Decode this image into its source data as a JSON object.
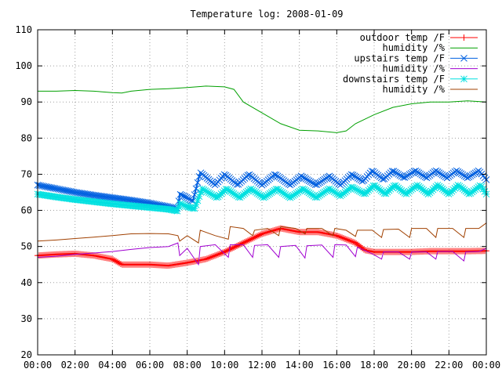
{
  "chart_data": {
    "type": "line",
    "title": "Temperature log: 2008-01-09",
    "xlabel": "",
    "ylabel": "",
    "x_tick_labels": [
      "00:00",
      "02:00",
      "04:00",
      "06:00",
      "08:00",
      "10:00",
      "12:00",
      "14:00",
      "16:00",
      "18:00",
      "20:00",
      "22:00",
      "00:00"
    ],
    "x_range_hours": [
      0,
      24
    ],
    "y_tick_labels": [
      "20",
      "30",
      "40",
      "50",
      "60",
      "70",
      "80",
      "90",
      "100",
      "110"
    ],
    "ylim": [
      20,
      110
    ],
    "grid": true,
    "legend_position": "top-right",
    "series": [
      {
        "name": "outdoor temp /F",
        "color": "#ff0000",
        "marker": "plus",
        "dense": true,
        "points": [
          [
            0,
            47.5
          ],
          [
            1,
            47.8
          ],
          [
            2,
            48
          ],
          [
            3,
            47.5
          ],
          [
            4,
            46.5
          ],
          [
            4.5,
            45
          ],
          [
            5,
            45
          ],
          [
            6,
            45
          ],
          [
            7,
            44.7
          ],
          [
            8,
            45.5
          ],
          [
            9,
            46.5
          ],
          [
            10,
            48.5
          ],
          [
            11,
            51
          ],
          [
            12,
            53.5
          ],
          [
            13,
            55
          ],
          [
            14,
            54
          ],
          [
            15,
            54
          ],
          [
            16,
            53
          ],
          [
            17,
            51
          ],
          [
            17.5,
            49
          ],
          [
            18,
            48.5
          ],
          [
            19,
            48.5
          ],
          [
            20,
            48.5
          ],
          [
            21,
            48.7
          ],
          [
            22,
            48.7
          ],
          [
            23,
            48.7
          ],
          [
            24,
            48.8
          ]
        ]
      },
      {
        "name": "humidity /%",
        "color": "#00a000",
        "marker": "none",
        "points": [
          [
            0,
            93
          ],
          [
            1,
            93
          ],
          [
            2,
            93.2
          ],
          [
            3,
            93
          ],
          [
            4,
            92.6
          ],
          [
            4.5,
            92.5
          ],
          [
            5,
            93
          ],
          [
            6,
            93.5
          ],
          [
            7,
            93.7
          ],
          [
            8,
            94
          ],
          [
            9,
            94.4
          ],
          [
            10,
            94.2
          ],
          [
            10.5,
            93.5
          ],
          [
            11,
            90
          ],
          [
            12,
            87
          ],
          [
            13,
            84
          ],
          [
            14,
            82.2
          ],
          [
            15,
            82
          ],
          [
            16,
            81.5
          ],
          [
            16.5,
            82
          ],
          [
            17,
            84
          ],
          [
            18,
            86.5
          ],
          [
            19,
            88.5
          ],
          [
            20,
            89.5
          ],
          [
            21,
            90
          ],
          [
            22,
            90
          ],
          [
            23,
            90.3
          ],
          [
            24,
            90
          ]
        ]
      },
      {
        "name": "upstairs temp /F",
        "color": "#0060e0",
        "marker": "x",
        "dense": true,
        "points": [
          [
            0,
            67
          ],
          [
            1,
            66
          ],
          [
            2,
            65
          ],
          [
            3,
            64.2
          ],
          [
            4,
            63.5
          ],
          [
            5,
            62.8
          ],
          [
            6,
            62
          ],
          [
            7,
            61
          ],
          [
            7.5,
            60.5
          ],
          [
            7.6,
            64.5
          ],
          [
            8,
            63.5
          ],
          [
            8.3,
            62.5
          ],
          [
            8.7,
            70.5
          ],
          [
            9.5,
            67
          ],
          [
            10,
            70
          ],
          [
            10.7,
            67
          ],
          [
            11.3,
            70
          ],
          [
            12,
            67
          ],
          [
            12.7,
            70
          ],
          [
            13.5,
            67
          ],
          [
            14.1,
            69.5
          ],
          [
            14.9,
            67
          ],
          [
            15.6,
            69.5
          ],
          [
            16.2,
            67
          ],
          [
            16.8,
            70
          ],
          [
            17.4,
            68
          ],
          [
            17.9,
            71
          ],
          [
            18.5,
            68.5
          ],
          [
            19,
            71
          ],
          [
            19.6,
            69
          ],
          [
            20.2,
            71
          ],
          [
            20.8,
            69
          ],
          [
            21.3,
            71
          ],
          [
            21.9,
            69
          ],
          [
            22.4,
            71
          ],
          [
            23,
            69
          ],
          [
            23.6,
            71
          ],
          [
            24,
            68.5
          ]
        ]
      },
      {
        "name": "humidity /%",
        "color": "#a000d0",
        "marker": "none",
        "points": [
          [
            0,
            47
          ],
          [
            1,
            47.3
          ],
          [
            2,
            47.8
          ],
          [
            3,
            48.2
          ],
          [
            4,
            48.6
          ],
          [
            5,
            49.2
          ],
          [
            6,
            49.7
          ],
          [
            7,
            50
          ],
          [
            7.5,
            51
          ],
          [
            7.6,
            47.5
          ],
          [
            8,
            49.5
          ],
          [
            8.6,
            45
          ],
          [
            8.7,
            50
          ],
          [
            9.5,
            50.5
          ],
          [
            10.2,
            47
          ],
          [
            10.3,
            50.5
          ],
          [
            11,
            50.5
          ],
          [
            11.5,
            47
          ],
          [
            11.6,
            50.3
          ],
          [
            12.3,
            50.5
          ],
          [
            12.9,
            47
          ],
          [
            13,
            50
          ],
          [
            13.8,
            50.3
          ],
          [
            14.3,
            46.8
          ],
          [
            14.4,
            50.2
          ],
          [
            15.2,
            50.4
          ],
          [
            15.8,
            47
          ],
          [
            15.9,
            50.5
          ],
          [
            16.5,
            50.4
          ],
          [
            17,
            47.2
          ],
          [
            17.1,
            49.8
          ],
          [
            17.9,
            48
          ],
          [
            18.4,
            46.5
          ],
          [
            18.5,
            48.5
          ],
          [
            19.3,
            48.5
          ],
          [
            19.9,
            46.5
          ],
          [
            20,
            48.5
          ],
          [
            20.8,
            48.5
          ],
          [
            21.3,
            46.5
          ],
          [
            21.4,
            48.6
          ],
          [
            22.2,
            48.6
          ],
          [
            22.8,
            46
          ],
          [
            22.9,
            48.5
          ],
          [
            23.6,
            48.6
          ],
          [
            24,
            49.5
          ]
        ]
      },
      {
        "name": "downstairs temp /F",
        "color": "#00e0e0",
        "marker": "star",
        "dense": true,
        "points": [
          [
            0,
            64.5
          ],
          [
            1,
            63.7
          ],
          [
            2,
            63
          ],
          [
            3,
            62.4
          ],
          [
            4,
            61.8
          ],
          [
            5,
            61.3
          ],
          [
            6,
            60.8
          ],
          [
            7,
            60.3
          ],
          [
            7.5,
            59.8
          ],
          [
            7.6,
            62
          ],
          [
            8,
            61
          ],
          [
            8.4,
            60.5
          ],
          [
            8.8,
            66
          ],
          [
            9.6,
            63.5
          ],
          [
            10.1,
            66
          ],
          [
            10.8,
            63.5
          ],
          [
            11.4,
            66
          ],
          [
            12.1,
            63.5
          ],
          [
            12.8,
            66
          ],
          [
            13.5,
            63.5
          ],
          [
            14.2,
            66
          ],
          [
            14.9,
            63.5
          ],
          [
            15.6,
            66
          ],
          [
            16.2,
            64
          ],
          [
            16.8,
            66.5
          ],
          [
            17.5,
            64.5
          ],
          [
            18,
            67
          ],
          [
            18.6,
            64.5
          ],
          [
            19.1,
            67
          ],
          [
            19.7,
            64.5
          ],
          [
            20.3,
            67
          ],
          [
            20.9,
            64.5
          ],
          [
            21.4,
            67
          ],
          [
            22,
            64.5
          ],
          [
            22.5,
            67
          ],
          [
            23.1,
            64.5
          ],
          [
            23.7,
            67
          ],
          [
            24,
            64.5
          ]
        ]
      },
      {
        "name": "humidity /%",
        "color": "#a04000",
        "marker": "none",
        "points": [
          [
            0,
            51.5
          ],
          [
            1,
            51.8
          ],
          [
            2,
            52.2
          ],
          [
            3,
            52.6
          ],
          [
            4,
            53
          ],
          [
            5,
            53.5
          ],
          [
            6,
            53.6
          ],
          [
            7,
            53.5
          ],
          [
            7.5,
            53
          ],
          [
            7.6,
            51.5
          ],
          [
            8,
            53
          ],
          [
            8.6,
            51
          ],
          [
            8.7,
            54.5
          ],
          [
            9.5,
            53
          ],
          [
            10.2,
            52
          ],
          [
            10.3,
            55.5
          ],
          [
            11,
            55
          ],
          [
            11.5,
            53
          ],
          [
            11.6,
            54.5
          ],
          [
            12.3,
            55
          ],
          [
            12.9,
            53
          ],
          [
            13,
            55.5
          ],
          [
            13.8,
            55
          ],
          [
            14.3,
            53.5
          ],
          [
            14.4,
            55
          ],
          [
            15.2,
            55
          ],
          [
            15.8,
            53
          ],
          [
            15.9,
            55
          ],
          [
            16.5,
            54.5
          ],
          [
            17,
            52.8
          ],
          [
            17.1,
            54.5
          ],
          [
            17.9,
            54.5
          ],
          [
            18.4,
            52.5
          ],
          [
            18.5,
            54.7
          ],
          [
            19.3,
            54.8
          ],
          [
            19.9,
            52.5
          ],
          [
            20,
            55
          ],
          [
            20.8,
            55
          ],
          [
            21.3,
            52.5
          ],
          [
            21.4,
            55
          ],
          [
            22.2,
            55
          ],
          [
            22.8,
            52.5
          ],
          [
            22.9,
            55
          ],
          [
            23.6,
            55
          ],
          [
            24,
            56.5
          ]
        ]
      }
    ]
  }
}
